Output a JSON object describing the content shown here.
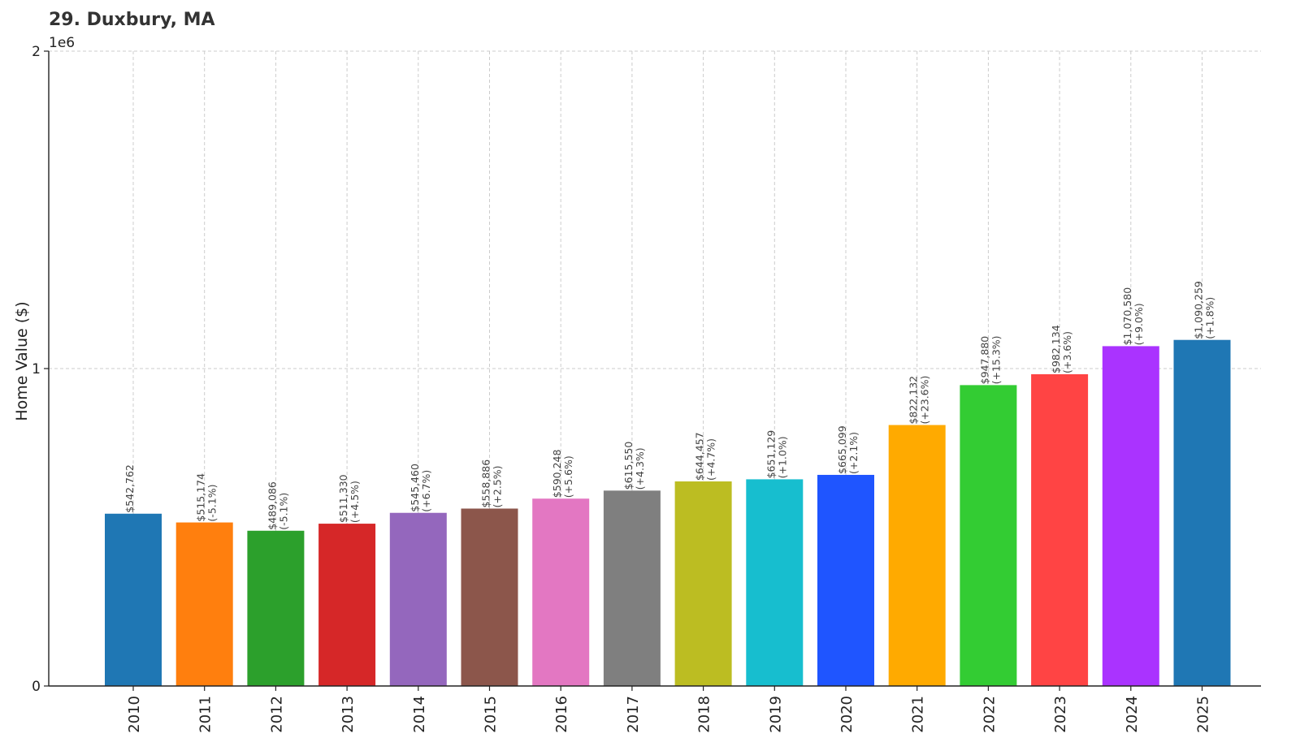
{
  "chart_data": {
    "type": "bar",
    "title": "29. Duxbury, MA",
    "xlabel": "",
    "ylabel": "Home Value ($)",
    "ylim": [
      0,
      2000000
    ],
    "yticks": [
      0,
      1000000,
      2000000
    ],
    "ytick_labels": [
      "0",
      "1",
      "2"
    ],
    "y_offset_label": "1e6",
    "grid": true,
    "categories": [
      "2010",
      "2011",
      "2012",
      "2013",
      "2014",
      "2015",
      "2016",
      "2017",
      "2018",
      "2019",
      "2020",
      "2021",
      "2022",
      "2023",
      "2024",
      "2025"
    ],
    "values": [
      542762,
      515174,
      489086,
      511330,
      545460,
      558886,
      590248,
      615550,
      644457,
      651129,
      665099,
      822132,
      947880,
      982134,
      1070580,
      1090259
    ],
    "labels": [
      [
        "$542,762"
      ],
      [
        "$515,174",
        "(-5.1%)"
      ],
      [
        "$489,086",
        "(-5.1%)"
      ],
      [
        "$511,330",
        "(+4.5%)"
      ],
      [
        "$545,460",
        "(+6.7%)"
      ],
      [
        "$558,886",
        "(+2.5%)"
      ],
      [
        "$590,248",
        "(+5.6%)"
      ],
      [
        "$615,550",
        "(+4.3%)"
      ],
      [
        "$644,457",
        "(+4.7%)"
      ],
      [
        "$651,129",
        "(+1.0%)"
      ],
      [
        "$665,099",
        "(+2.1%)"
      ],
      [
        "$822,132",
        "(+23.6%)"
      ],
      [
        "$947,880",
        "(+15.3%)"
      ],
      [
        "$982,134",
        "(+3.6%)"
      ],
      [
        "$1,070,580",
        "(+9.0%)"
      ],
      [
        "$1,090,259",
        "(+1.8%)"
      ]
    ],
    "colors": [
      "#1f77b4",
      "#ff7f0e",
      "#2ca02c",
      "#d62728",
      "#9467bd",
      "#8c564b",
      "#e377c2",
      "#7f7f7f",
      "#bcbd22",
      "#17becf",
      "#1f55ff",
      "#ffaa00",
      "#33cc33",
      "#ff4444",
      "#aa33ff",
      "#1f77b4"
    ]
  }
}
